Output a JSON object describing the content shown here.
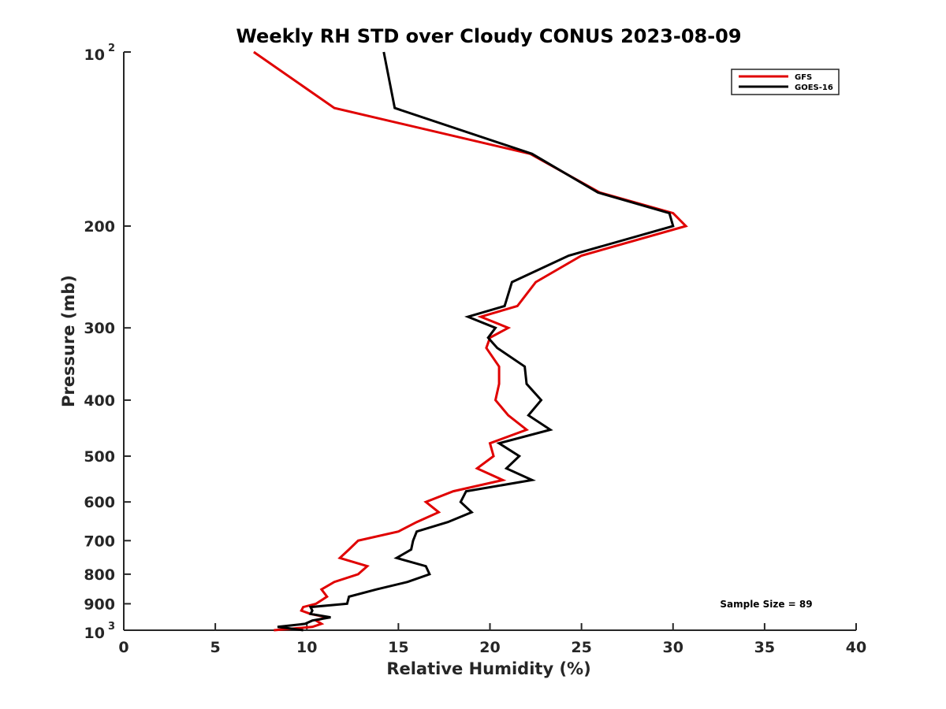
{
  "chart_data": {
    "type": "line",
    "title": "Weekly RH STD over Cloudy CONUS 2023-08-09",
    "xlabel": "Relative Humidity (%)",
    "ylabel": "Pressure (mb)",
    "xlim": [
      0,
      40
    ],
    "ylim": [
      100,
      1000
    ],
    "y_scale": "log",
    "y_reversed": true,
    "x_ticks": [
      "0",
      "5",
      "10",
      "15",
      "20",
      "25",
      "30",
      "35",
      "40"
    ],
    "y_ticks": [
      {
        "value": 100,
        "base": "10",
        "exp": "2"
      },
      {
        "value": 200,
        "label": "200"
      },
      {
        "value": 300,
        "label": "300"
      },
      {
        "value": 400,
        "label": "400"
      },
      {
        "value": 500,
        "label": "500"
      },
      {
        "value": 600,
        "label": "600"
      },
      {
        "value": 700,
        "label": "700"
      },
      {
        "value": 800,
        "label": "800"
      },
      {
        "value": 900,
        "label": "900"
      },
      {
        "value": 1000,
        "base": "10",
        "exp": "3"
      }
    ],
    "grid": false,
    "legend_position": "top-right",
    "annotation": "Sample Size = 89",
    "series": [
      {
        "name": "GFS",
        "color": "#e00000",
        "points": [
          [
            7.1,
            100
          ],
          [
            11.5,
            125
          ],
          [
            22.2,
            150
          ],
          [
            26,
            175
          ],
          [
            30,
            190
          ],
          [
            30.7,
            200
          ],
          [
            25,
            225
          ],
          [
            22.5,
            250
          ],
          [
            21.5,
            275
          ],
          [
            19.5,
            287
          ],
          [
            21,
            300
          ],
          [
            20,
            312
          ],
          [
            19.8,
            325
          ],
          [
            20.5,
            350
          ],
          [
            20.5,
            375
          ],
          [
            20.3,
            400
          ],
          [
            21,
            425
          ],
          [
            22,
            450
          ],
          [
            20,
            475
          ],
          [
            20.2,
            500
          ],
          [
            19.3,
            525
          ],
          [
            20.7,
            550
          ],
          [
            18,
            575
          ],
          [
            16.5,
            600
          ],
          [
            17.2,
            625
          ],
          [
            16,
            650
          ],
          [
            15,
            675
          ],
          [
            12.8,
            700
          ],
          [
            12.3,
            725
          ],
          [
            11.8,
            750
          ],
          [
            13.3,
            775
          ],
          [
            12.8,
            800
          ],
          [
            11.5,
            825
          ],
          [
            10.8,
            850
          ],
          [
            11.1,
            875
          ],
          [
            10.5,
            900
          ],
          [
            9.8,
            912
          ],
          [
            9.7,
            925
          ],
          [
            10.2,
            937
          ],
          [
            11.1,
            950
          ],
          [
            10.5,
            962
          ],
          [
            10.8,
            975
          ],
          [
            10.3,
            987
          ],
          [
            8.2,
            1000
          ]
        ]
      },
      {
        "name": "GOES-16",
        "color": "#000000",
        "points": [
          [
            14.2,
            100
          ],
          [
            14.8,
            125
          ],
          [
            22.3,
            150
          ],
          [
            25.9,
            175
          ],
          [
            29.8,
            190
          ],
          [
            30,
            200
          ],
          [
            24.3,
            225
          ],
          [
            21.2,
            250
          ],
          [
            20.8,
            275
          ],
          [
            18.8,
            287
          ],
          [
            20.3,
            300
          ],
          [
            19.9,
            312
          ],
          [
            20.4,
            325
          ],
          [
            21.9,
            350
          ],
          [
            22,
            375
          ],
          [
            22.8,
            400
          ],
          [
            22.1,
            425
          ],
          [
            23.3,
            450
          ],
          [
            20.5,
            475
          ],
          [
            21.6,
            500
          ],
          [
            20.9,
            525
          ],
          [
            22.3,
            550
          ],
          [
            18.7,
            575
          ],
          [
            18.4,
            600
          ],
          [
            19,
            625
          ],
          [
            17.7,
            650
          ],
          [
            16,
            675
          ],
          [
            15.8,
            700
          ],
          [
            15.7,
            725
          ],
          [
            14.9,
            750
          ],
          [
            16.5,
            775
          ],
          [
            16.7,
            800
          ],
          [
            15.5,
            825
          ],
          [
            13.8,
            850
          ],
          [
            12.3,
            875
          ],
          [
            12.2,
            900
          ],
          [
            10.2,
            912
          ],
          [
            10.3,
            925
          ],
          [
            10.2,
            937
          ],
          [
            11.3,
            950
          ],
          [
            10.3,
            962
          ],
          [
            9.9,
            975
          ],
          [
            8.4,
            987
          ],
          [
            9.8,
            1000
          ]
        ]
      }
    ]
  }
}
